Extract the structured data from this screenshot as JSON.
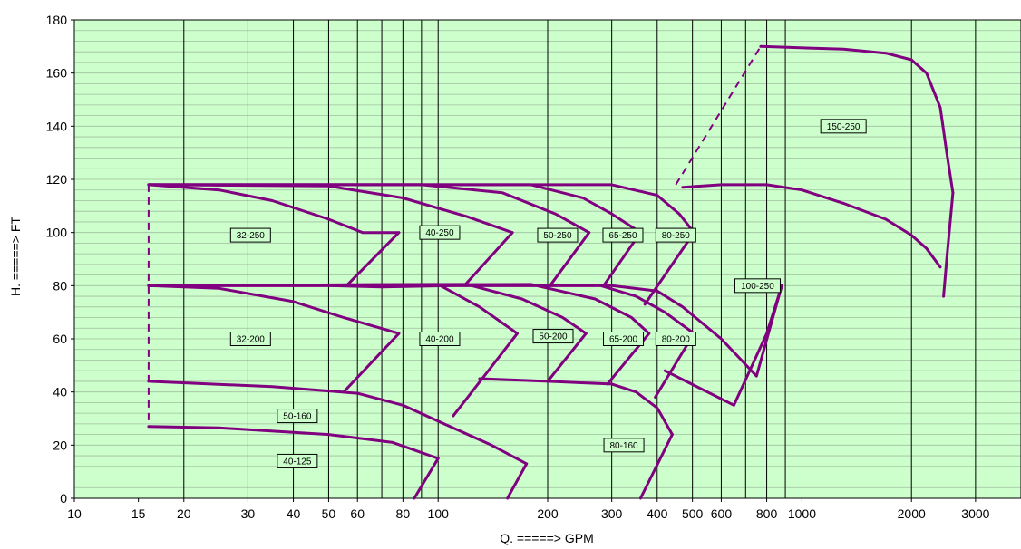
{
  "chart_data": {
    "type": "line",
    "xlabel": "Q. =====> GPM",
    "ylabel": "H. =====> FT",
    "xscale": "log",
    "xlim": [
      10,
      4000
    ],
    "ylim": [
      0,
      180
    ],
    "grid": true,
    "colors": {
      "plot_bg": "#ccffcc",
      "curve": "#800080",
      "grid_minor": "#9fbf9f",
      "grid_major": "#000000"
    },
    "x_tick_labels": [
      {
        "value": 10,
        "label": "10"
      },
      {
        "value": 15,
        "label": "15"
      },
      {
        "value": 20,
        "label": "20"
      },
      {
        "value": 30,
        "label": "30"
      },
      {
        "value": 40,
        "label": "40"
      },
      {
        "value": 50,
        "label": "50"
      },
      {
        "value": 60,
        "label": "60"
      },
      {
        "value": 80,
        "label": "80"
      },
      {
        "value": 100,
        "label": "100"
      },
      {
        "value": 200,
        "label": "200"
      },
      {
        "value": 300,
        "label": "300"
      },
      {
        "value": 400,
        "label": "400"
      },
      {
        "value": 500,
        "label": "500"
      },
      {
        "value": 600,
        "label": "600"
      },
      {
        "value": 800,
        "label": "800"
      },
      {
        "value": 1000,
        "label": "1000"
      },
      {
        "value": 2000,
        "label": "2000"
      },
      {
        "value": 3000,
        "label": "3000"
      }
    ],
    "x_major_lines": [
      20,
      30,
      40,
      50,
      60,
      70,
      80,
      90,
      100,
      200,
      300,
      400,
      500,
      600,
      700,
      800,
      900,
      2000,
      3000
    ],
    "y_ticks": [
      0,
      20,
      40,
      60,
      80,
      100,
      120,
      140,
      160,
      180
    ],
    "y_minor_step": 4,
    "labels": [
      {
        "text": "150-250",
        "x": 1300,
        "y": 140
      },
      {
        "text": "32-250",
        "x": 30.5,
        "y": 99
      },
      {
        "text": "40-250",
        "x": 101,
        "y": 100
      },
      {
        "text": "50-250",
        "x": 213,
        "y": 99
      },
      {
        "text": "65-250",
        "x": 322,
        "y": 99
      },
      {
        "text": "80-250",
        "x": 450,
        "y": 99
      },
      {
        "text": "100-250",
        "x": 755,
        "y": 80
      },
      {
        "text": "32-200",
        "x": 30.5,
        "y": 60
      },
      {
        "text": "40-200",
        "x": 101,
        "y": 60
      },
      {
        "text": "50-200",
        "x": 207,
        "y": 61
      },
      {
        "text": "65-200",
        "x": 323,
        "y": 60
      },
      {
        "text": "80-200",
        "x": 450,
        "y": 60
      },
      {
        "text": "50-160",
        "x": 41,
        "y": 31
      },
      {
        "text": "40-125",
        "x": 41,
        "y": 14
      },
      {
        "text": "80-160",
        "x": 324,
        "y": 20
      }
    ],
    "series": [
      {
        "points": [
          [
            16,
            118
          ],
          [
            25,
            116
          ],
          [
            35,
            112
          ],
          [
            50,
            105
          ],
          [
            62,
            100
          ],
          [
            78,
            100
          ]
        ]
      },
      {
        "points": [
          [
            78,
            100
          ],
          [
            56,
            80
          ]
        ]
      },
      {
        "points": [
          [
            16,
            118
          ],
          [
            50,
            117.5
          ],
          [
            80,
            113
          ],
          [
            120,
            106
          ],
          [
            160,
            100
          ]
        ]
      },
      {
        "points": [
          [
            160,
            100
          ],
          [
            118,
            80
          ]
        ]
      },
      {
        "points": [
          [
            16,
            118
          ],
          [
            90,
            118
          ],
          [
            150,
            115
          ],
          [
            210,
            107
          ],
          [
            260,
            100
          ]
        ]
      },
      {
        "points": [
          [
            260,
            100
          ],
          [
            203,
            80
          ]
        ]
      },
      {
        "points": [
          [
            16,
            118
          ],
          [
            180,
            118
          ],
          [
            250,
            113
          ],
          [
            300,
            107
          ],
          [
            360,
            100
          ]
        ]
      },
      {
        "points": [
          [
            360,
            100
          ],
          [
            285,
            80
          ]
        ]
      },
      {
        "points": [
          [
            16,
            118
          ],
          [
            300,
            118
          ],
          [
            400,
            114
          ],
          [
            460,
            107
          ],
          [
            505,
            100
          ]
        ]
      },
      {
        "points": [
          [
            505,
            100
          ],
          [
            370,
            73
          ]
        ]
      },
      {
        "points": [
          [
            470,
            117
          ],
          [
            600,
            118
          ],
          [
            800,
            118
          ],
          [
            1000,
            116
          ],
          [
            1300,
            111
          ],
          [
            1700,
            105
          ],
          [
            2000,
            99
          ],
          [
            2200,
            94
          ],
          [
            2400,
            87
          ]
        ]
      },
      {
        "points": [
          [
            450,
            118
          ],
          [
            770,
            170
          ]
        ],
        "dashed": true
      },
      {
        "points": [
          [
            770,
            170
          ],
          [
            1300,
            169
          ],
          [
            1700,
            167.5
          ],
          [
            2000,
            165
          ],
          [
            2200,
            160
          ],
          [
            2400,
            147
          ],
          [
            2500,
            130
          ],
          [
            2600,
            115
          ]
        ]
      },
      {
        "points": [
          [
            2600,
            115
          ],
          [
            2500,
            90
          ],
          [
            2450,
            76
          ]
        ]
      },
      {
        "points": [
          [
            16,
            80
          ],
          [
            30,
            80
          ],
          [
            50,
            80
          ],
          [
            70,
            79.5
          ],
          [
            110,
            80
          ],
          [
            200,
            80
          ],
          [
            300,
            80
          ],
          [
            400,
            78
          ],
          [
            470,
            72
          ],
          [
            600,
            60
          ],
          [
            750,
            46
          ],
          [
            880,
            80
          ]
        ]
      },
      {
        "points": [
          [
            880,
            80
          ],
          [
            800,
            62
          ],
          [
            650,
            35
          ],
          [
            420,
            48
          ]
        ]
      },
      {
        "points": [
          [
            16,
            80
          ],
          [
            25,
            79
          ],
          [
            40,
            74
          ],
          [
            55,
            68
          ],
          [
            78,
            62
          ]
        ]
      },
      {
        "points": [
          [
            78,
            62
          ],
          [
            55,
            40
          ]
        ]
      },
      {
        "points": [
          [
            16,
            80
          ],
          [
            100,
            80.5
          ],
          [
            130,
            72
          ],
          [
            165,
            62
          ]
        ]
      },
      {
        "points": [
          [
            165,
            62
          ],
          [
            110,
            31
          ]
        ]
      },
      {
        "points": [
          [
            16,
            80
          ],
          [
            120,
            80.5
          ],
          [
            170,
            75
          ],
          [
            220,
            68
          ],
          [
            255,
            62
          ]
        ]
      },
      {
        "points": [
          [
            255,
            62
          ],
          [
            200,
            44
          ]
        ]
      },
      {
        "points": [
          [
            16,
            80
          ],
          [
            180,
            80.5
          ],
          [
            270,
            75
          ],
          [
            340,
            68
          ],
          [
            380,
            62
          ]
        ]
      },
      {
        "points": [
          [
            380,
            62
          ],
          [
            292,
            43
          ]
        ]
      },
      {
        "points": [
          [
            16,
            80
          ],
          [
            280,
            80
          ],
          [
            350,
            76
          ],
          [
            420,
            70
          ],
          [
            505,
            62
          ]
        ]
      },
      {
        "points": [
          [
            505,
            62
          ],
          [
            395,
            38
          ]
        ]
      },
      {
        "points": [
          [
            16,
            44
          ],
          [
            35,
            42
          ],
          [
            60,
            39.5
          ],
          [
            80,
            35
          ],
          [
            100,
            29
          ],
          [
            140,
            20
          ],
          [
            175,
            13
          ]
        ]
      },
      {
        "points": [
          [
            175,
            13
          ],
          [
            155,
            0
          ]
        ]
      },
      {
        "points": [
          [
            16,
            27
          ],
          [
            25,
            26.5
          ],
          [
            50,
            24
          ],
          [
            75,
            21
          ],
          [
            100,
            15
          ]
        ]
      },
      {
        "points": [
          [
            100,
            15
          ],
          [
            86,
            0
          ]
        ]
      },
      {
        "points": [
          [
            130,
            45
          ],
          [
            200,
            44
          ],
          [
            300,
            43
          ],
          [
            350,
            40
          ],
          [
            400,
            34
          ],
          [
            440,
            24
          ]
        ]
      },
      {
        "points": [
          [
            440,
            24
          ],
          [
            360,
            0
          ]
        ]
      },
      {
        "points": [
          [
            16,
            118
          ],
          [
            16,
            27
          ]
        ],
        "dashed": true
      }
    ]
  }
}
